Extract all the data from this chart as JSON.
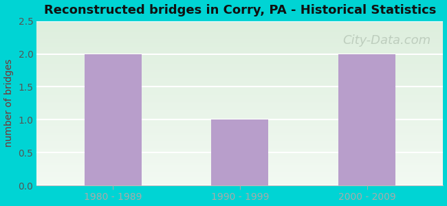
{
  "title": "Reconstructed bridges in Corry, PA - Historical Statistics",
  "categories": [
    "1980 - 1989",
    "1990 - 1999",
    "2000 - 2009"
  ],
  "values": [
    2,
    1,
    2
  ],
  "bar_color": "#b89ecb",
  "ylim": [
    0,
    2.5
  ],
  "yticks": [
    0,
    0.5,
    1,
    1.5,
    2,
    2.5
  ],
  "ylabel": "number of bridges",
  "ylabel_color": "#7a3030",
  "ylabel_fontsize": 10,
  "title_fontsize": 13,
  "title_fontweight": "bold",
  "title_color": "#111111",
  "tick_label_color": "#555555",
  "tick_fontsize": 10,
  "background_outer": "#00d4d4",
  "background_plot_top": "#ddeedd",
  "background_plot_bottom": "#f2f9f2",
  "grid_color": "#ffffff",
  "watermark_text": "City-Data.com",
  "watermark_color": "#b8c8b8",
  "watermark_fontsize": 13,
  "bar_width": 0.45
}
